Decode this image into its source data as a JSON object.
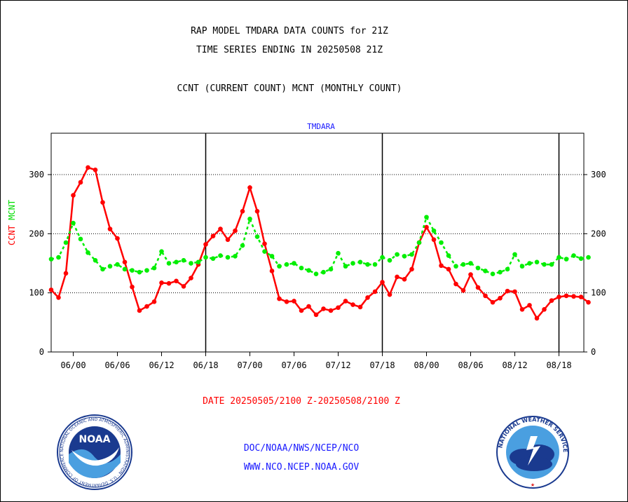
{
  "header": {
    "title_line1": "RAP MODEL TMDARA DATA COUNTS for 21Z",
    "title_line2": "TIME SERIES ENDING IN 20250508 21Z",
    "subtitle": "CCNT (CURRENT COUNT) MCNT (MONTHLY COUNT)"
  },
  "footer": {
    "date_range": "DATE 20250505/2100 Z-20250508/2100 Z",
    "org_line": "DOC/NOAA/NWS/NCEP/NCO",
    "url_line": "WWW.NCO.NCEP.NOAA.GOV"
  },
  "logos": {
    "noaa": {
      "text": "NOAA",
      "ring_text": "NATIONAL OCEANIC AND ATMOSPHERIC ADMINISTRATION · U.S. DEPARTMENT OF COMMERCE"
    },
    "nws": {
      "ring_text": "NATIONAL WEATHER SERVICE"
    }
  },
  "colors": {
    "ccnt": "#ff0000",
    "mcnt": "#00ee00",
    "plot_title": "#1a1aff"
  },
  "chart_data": {
    "type": "line",
    "title": "TMDARA",
    "ylabel_parts": [
      {
        "text": "CCNT",
        "color": "#ff0000"
      },
      {
        "text": "MCNT",
        "color": "#00dd00"
      }
    ],
    "x_tick_labels": [
      "06/00",
      "06/06",
      "06/12",
      "06/18",
      "07/00",
      "07/06",
      "07/12",
      "07/18",
      "08/00",
      "08/06",
      "08/12",
      "08/18"
    ],
    "day_boundaries": [
      "06/18",
      "07/18",
      "08/18"
    ],
    "ylim": [
      0,
      370
    ],
    "yticks": [
      0,
      100,
      200,
      300
    ],
    "grid": "horizontal dotted at 100, 200, 300",
    "series": [
      {
        "name": "CCNT",
        "color": "#ff0000",
        "values": [
          105,
          92,
          133,
          265,
          287,
          312,
          308,
          253,
          208,
          192,
          152,
          110,
          70,
          77,
          85,
          117,
          116,
          120,
          111,
          125,
          148,
          182,
          196,
          208,
          190,
          205,
          238,
          278,
          238,
          183,
          137,
          90,
          85,
          86,
          70,
          77,
          63,
          73,
          70,
          75,
          86,
          80,
          76,
          92,
          102,
          118,
          97,
          127,
          123,
          140,
          185,
          211,
          190,
          146,
          140,
          115,
          104,
          131,
          109,
          95,
          84,
          91,
          103,
          102,
          72,
          79,
          57,
          72,
          87,
          93,
          95,
          94,
          93,
          84
        ]
      },
      {
        "name": "MCNT",
        "color": "#00ee00",
        "values": [
          157,
          160,
          185,
          218,
          191,
          168,
          155,
          140,
          145,
          148,
          140,
          138,
          135,
          138,
          142,
          170,
          150,
          152,
          155,
          150,
          152,
          160,
          158,
          163,
          160,
          162,
          180,
          225,
          195,
          170,
          162,
          145,
          148,
          150,
          142,
          138,
          132,
          135,
          140,
          167,
          145,
          150,
          152,
          148,
          148,
          160,
          155,
          165,
          162,
          165,
          185,
          228,
          205,
          185,
          163,
          145,
          148,
          150,
          142,
          137,
          132,
          135,
          140,
          165,
          145,
          150,
          152,
          148,
          148,
          160,
          157,
          163,
          158,
          160
        ]
      }
    ]
  }
}
